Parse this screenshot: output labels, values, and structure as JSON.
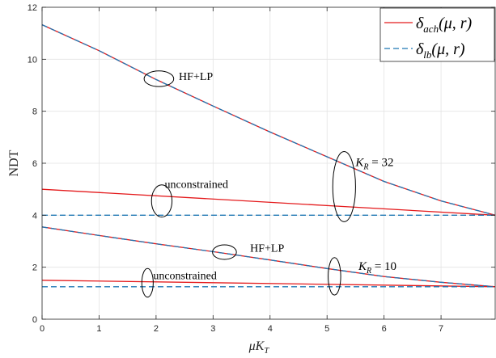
{
  "chart_data": {
    "type": "line",
    "xlabel": "μK",
    "xlabel_sub": "T",
    "ylabel": "NDT",
    "xlim": [
      0,
      7.95
    ],
    "ylim": [
      0,
      12
    ],
    "xticks": [
      0,
      1,
      2,
      3,
      4,
      5,
      6,
      7
    ],
    "yticks": [
      0,
      2,
      4,
      6,
      8,
      10,
      12
    ],
    "grid": true,
    "legend_placement": "top-right",
    "legend": [
      {
        "main": "δ",
        "sub": "ach",
        "args": "(μ, r)",
        "color": "#e41a1c",
        "dash": "solid"
      },
      {
        "main": "δ",
        "sub": "lb",
        "args": "(μ, r)",
        "color": "#1f77b4",
        "dash": "dashed"
      }
    ],
    "series": [
      {
        "group": "K_R=32",
        "variant": "HF+LP achievable",
        "color": "#e41a1c",
        "dash": "solid",
        "x": [
          0,
          1,
          2,
          3,
          4,
          5,
          6,
          7,
          7.95
        ],
        "y": [
          11.33,
          10.33,
          9.22,
          8.2,
          7.2,
          6.25,
          5.3,
          4.55,
          4.0
        ]
      },
      {
        "group": "K_R=32",
        "variant": "HF+LP lower bound",
        "color": "#1f77b4",
        "dash": "dashed",
        "x": [
          0,
          1,
          2,
          3,
          4,
          5,
          6,
          7,
          7.95
        ],
        "y": [
          11.33,
          10.33,
          9.22,
          8.2,
          7.2,
          6.25,
          5.3,
          4.55,
          4.0
        ]
      },
      {
        "group": "K_R=32",
        "variant": "unconstrained achievable",
        "color": "#e41a1c",
        "dash": "solid",
        "x": [
          0,
          7.95
        ],
        "y": [
          5.0,
          4.0
        ]
      },
      {
        "group": "K_R=32",
        "variant": "unconstrained lower bound",
        "color": "#1f77b4",
        "dash": "dashed",
        "x": [
          0,
          7.95
        ],
        "y": [
          4.0,
          4.0
        ]
      },
      {
        "group": "K_R=10",
        "variant": "HF+LP achievable",
        "color": "#e41a1c",
        "dash": "solid",
        "x": [
          0,
          1,
          2,
          3,
          4,
          5,
          6,
          7,
          7.95
        ],
        "y": [
          3.55,
          3.22,
          2.9,
          2.6,
          2.28,
          1.95,
          1.64,
          1.42,
          1.25
        ]
      },
      {
        "group": "K_R=10",
        "variant": "HF+LP lower bound",
        "color": "#1f77b4",
        "dash": "dashed",
        "x": [
          0,
          1,
          2,
          3,
          4,
          5,
          6,
          7,
          7.95
        ],
        "y": [
          3.55,
          3.22,
          2.9,
          2.6,
          2.28,
          1.95,
          1.64,
          1.42,
          1.25
        ]
      },
      {
        "group": "K_R=10",
        "variant": "unconstrained achievable",
        "color": "#e41a1c",
        "dash": "solid",
        "x": [
          0,
          7.95
        ],
        "y": [
          1.5,
          1.25
        ]
      },
      {
        "group": "K_R=10",
        "variant": "unconstrained lower bound",
        "color": "#1f77b4",
        "dash": "dashed",
        "x": [
          0,
          7.95
        ],
        "y": [
          1.25,
          1.25
        ]
      }
    ],
    "annotations": [
      {
        "text": "HF+LP",
        "kind": "plain",
        "x": 2.4,
        "y": 9.35,
        "ellipse": {
          "cx": 2.05,
          "cy": 9.25,
          "rx": 0.26,
          "ry": 0.3
        }
      },
      {
        "text": "K",
        "sub": "R",
        "rest": " = 32",
        "kind": "math",
        "x": 5.5,
        "y": 6.05,
        "ellipse": {
          "cx": 5.3,
          "cy": 5.1,
          "rx": 0.2,
          "ry": 1.35
        }
      },
      {
        "text": "unconstrained",
        "kind": "plain",
        "x": 2.15,
        "y": 5.2,
        "ellipse": {
          "cx": 2.1,
          "cy": 4.55,
          "rx": 0.18,
          "ry": 0.62
        }
      },
      {
        "text": "HF+LP",
        "kind": "plain",
        "x": 3.65,
        "y": 2.75,
        "ellipse": {
          "cx": 3.2,
          "cy": 2.58,
          "rx": 0.21,
          "ry": 0.28
        }
      },
      {
        "text": "K",
        "sub": "R",
        "rest": " = 10",
        "kind": "math",
        "x": 5.55,
        "y": 2.05,
        "ellipse": {
          "cx": 5.13,
          "cy": 1.65,
          "rx": 0.11,
          "ry": 0.72
        }
      },
      {
        "text": "unconstrained",
        "kind": "plain",
        "x": 1.95,
        "y": 1.7,
        "ellipse": {
          "cx": 1.85,
          "cy": 1.4,
          "rx": 0.1,
          "ry": 0.55
        }
      }
    ]
  }
}
